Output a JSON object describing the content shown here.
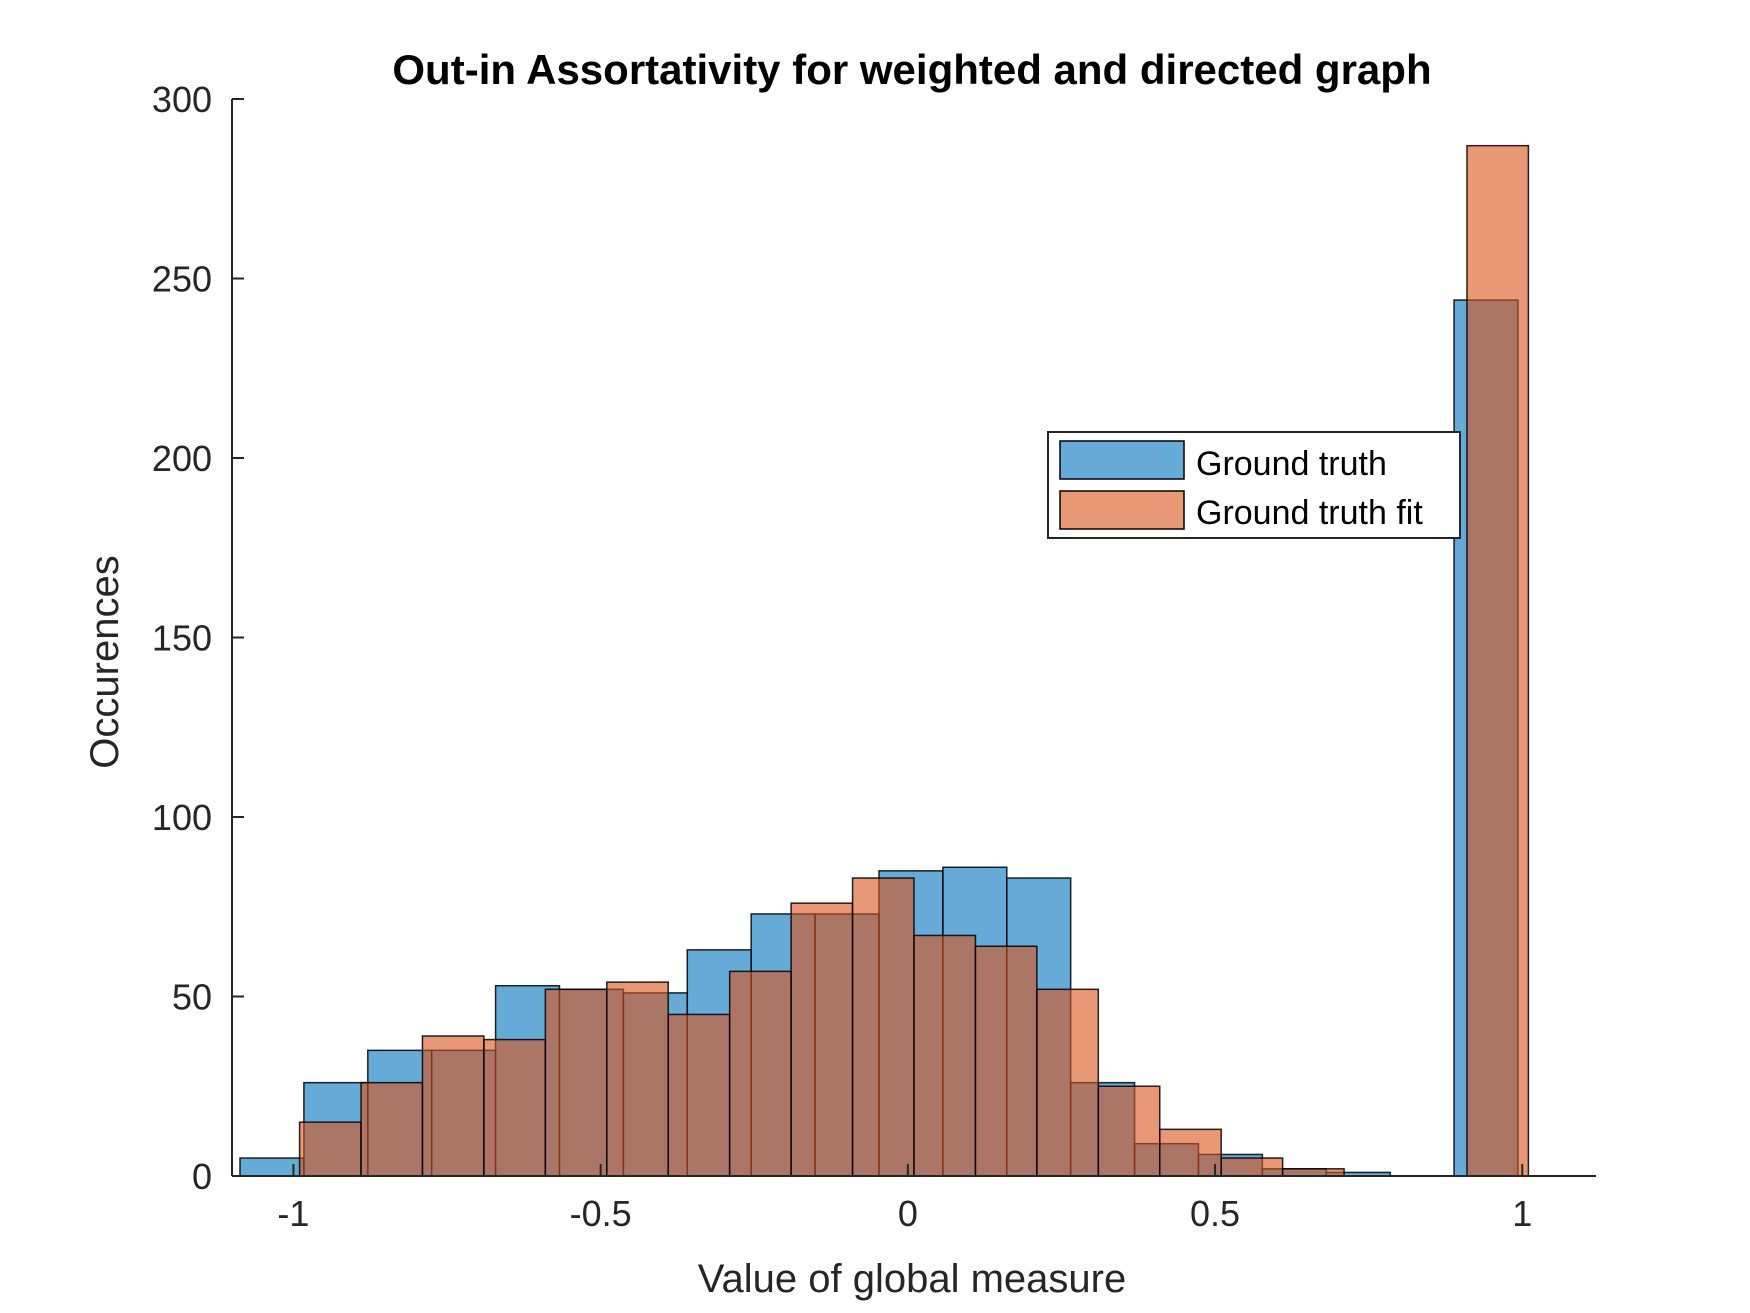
{
  "chart_data": {
    "type": "bar",
    "title": "Out-in Assortativity for weighted and directed graph",
    "xlabel": "Value of global measure",
    "ylabel": "Occurences",
    "xlim": [
      -1.1,
      1.12
    ],
    "ylim": [
      0,
      300
    ],
    "xticks": [
      -1,
      -0.5,
      0,
      0.5,
      1
    ],
    "xtick_labels": [
      "-1",
      "-0.5",
      "0",
      "0.5",
      "1"
    ],
    "yticks": [
      0,
      50,
      100,
      150,
      200,
      250,
      300
    ],
    "ytick_labels": [
      "0",
      "50",
      "100",
      "150",
      "200",
      "250",
      "300"
    ],
    "grid": false,
    "legend_position": "upper-right",
    "series": [
      {
        "name": "Ground truth",
        "color": "#0072BD",
        "bin_width": 0.104,
        "bin_edges": [
          -1.087,
          -0.983,
          -0.879,
          -0.775,
          -0.671,
          -0.567,
          -0.463,
          -0.359,
          -0.255,
          -0.151,
          -0.047,
          0.057,
          0.161,
          0.265,
          0.369,
          0.473,
          0.577,
          0.681,
          0.785,
          0.889,
          0.993
        ],
        "values": [
          5,
          26,
          35,
          35,
          53,
          52,
          51,
          63,
          73,
          73,
          85,
          86,
          83,
          26,
          9,
          6,
          2,
          1,
          0,
          244
        ]
      },
      {
        "name": "Ground truth fit",
        "color": "#D95319",
        "bin_width": 0.1,
        "bin_edges": [
          -0.99,
          -0.89,
          -0.79,
          -0.69,
          -0.59,
          -0.49,
          -0.39,
          -0.29,
          -0.19,
          -0.09,
          0.01,
          0.11,
          0.21,
          0.31,
          0.41,
          0.51,
          0.61,
          0.71,
          0.81,
          0.91,
          1.01
        ],
        "values": [
          15,
          26,
          39,
          38,
          52,
          54,
          45,
          57,
          76,
          83,
          67,
          64,
          52,
          25,
          13,
          5,
          2,
          0,
          0,
          287
        ]
      }
    ]
  }
}
